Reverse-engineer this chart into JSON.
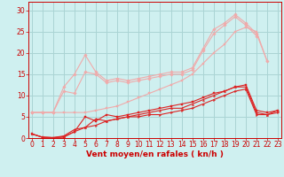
{
  "xlabel": "Vent moyen/en rafales ( kn/h )",
  "background_color": "#cff0f0",
  "grid_color": "#aad4d4",
  "x": [
    0,
    1,
    2,
    3,
    4,
    5,
    6,
    7,
    8,
    9,
    10,
    11,
    12,
    13,
    14,
    15,
    16,
    17,
    18,
    19,
    20,
    21,
    22,
    23
  ],
  "lines": [
    {
      "y": [
        6.0,
        6.0,
        6.0,
        12.0,
        15.0,
        19.5,
        15.5,
        13.5,
        14.0,
        13.5,
        14.0,
        14.5,
        15.0,
        15.5,
        15.5,
        16.5,
        21.0,
        25.5,
        27.0,
        29.0,
        27.0,
        24.5,
        18.0,
        null
      ],
      "color": "#f0aaaa",
      "lw": 0.8,
      "marker": "D",
      "ms": 1.8
    },
    {
      "y": [
        6.0,
        6.0,
        6.0,
        11.0,
        10.5,
        15.5,
        15.0,
        13.0,
        13.5,
        13.0,
        13.5,
        14.0,
        14.5,
        15.0,
        15.0,
        16.0,
        20.5,
        24.5,
        26.5,
        28.5,
        26.5,
        24.0,
        null,
        null
      ],
      "color": "#f0aaaa",
      "lw": 0.8,
      "marker": "D",
      "ms": 1.8
    },
    {
      "y": [
        6.0,
        6.0,
        6.0,
        6.0,
        6.0,
        6.0,
        6.5,
        7.0,
        7.5,
        8.5,
        9.5,
        10.5,
        11.5,
        12.5,
        13.5,
        15.0,
        17.5,
        20.0,
        22.0,
        25.0,
        26.0,
        25.0,
        18.0,
        null
      ],
      "color": "#f0aaaa",
      "lw": 0.8,
      "marker": "s",
      "ms": 1.8
    },
    {
      "y": [
        1.0,
        0.2,
        0.1,
        0.3,
        1.5,
        5.0,
        4.0,
        5.5,
        5.0,
        5.5,
        6.0,
        6.5,
        7.0,
        7.5,
        8.0,
        8.5,
        9.5,
        10.5,
        11.0,
        12.0,
        12.5,
        6.5,
        6.0,
        6.5
      ],
      "color": "#dd2222",
      "lw": 0.8,
      "marker": "s",
      "ms": 1.5
    },
    {
      "y": [
        1.0,
        0.2,
        0.1,
        0.2,
        1.5,
        2.5,
        3.0,
        4.0,
        4.5,
        5.0,
        5.0,
        5.5,
        5.5,
        6.0,
        6.5,
        7.0,
        8.0,
        9.0,
        10.0,
        11.0,
        11.5,
        5.5,
        5.5,
        6.0
      ],
      "color": "#dd2222",
      "lw": 0.8,
      "marker": ">",
      "ms": 1.5
    },
    {
      "y": [
        1.0,
        0.2,
        0.1,
        0.5,
        2.0,
        2.5,
        4.5,
        4.0,
        4.5,
        5.0,
        5.5,
        6.0,
        6.5,
        7.0,
        7.0,
        8.0,
        9.0,
        10.0,
        11.0,
        12.0,
        12.0,
        6.0,
        5.5,
        6.5
      ],
      "color": "#dd2222",
      "lw": 0.8,
      "marker": "^",
      "ms": 1.5
    }
  ],
  "xlim": [
    -0.3,
    23.3
  ],
  "ylim": [
    0,
    32
  ],
  "yticks": [
    0,
    5,
    10,
    15,
    20,
    25,
    30
  ],
  "xticks": [
    0,
    1,
    2,
    3,
    4,
    5,
    6,
    7,
    8,
    9,
    10,
    11,
    12,
    13,
    14,
    15,
    16,
    17,
    18,
    19,
    20,
    21,
    22,
    23
  ],
  "tick_color": "#cc0000",
  "label_color": "#cc0000",
  "label_fontsize": 6.5,
  "tick_fontsize": 5.5,
  "xlabel_fontweight": "bold"
}
